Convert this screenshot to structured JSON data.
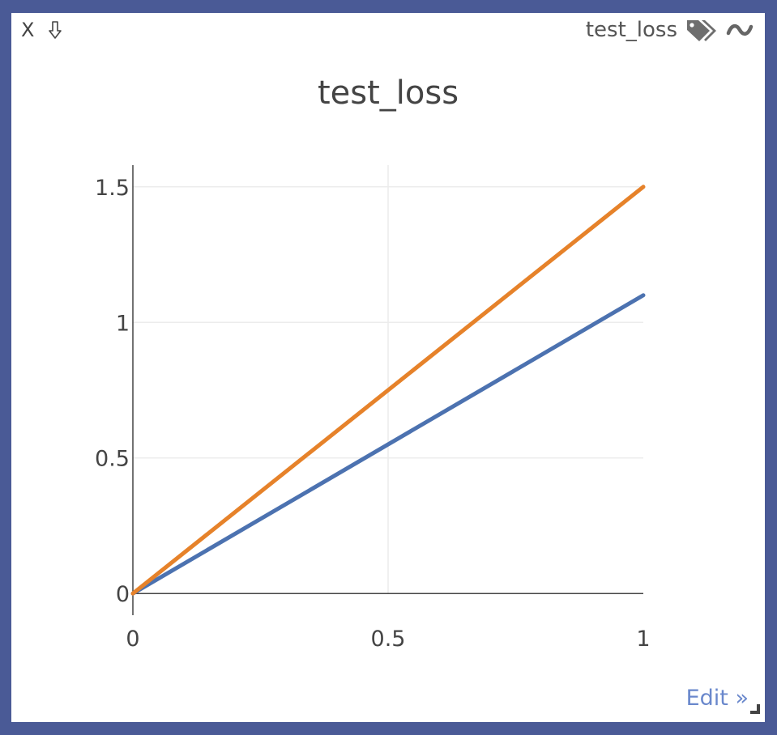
{
  "window": {
    "title": "test_loss",
    "close_label": "X",
    "edit_label": "Edit »"
  },
  "icons": {
    "close": "close-icon",
    "download": "download-arrow-icon",
    "tags": "tags-icon",
    "smoothing": "tilde-icon",
    "resize": "resize-corner-icon"
  },
  "colors": {
    "border": "#4a5a96",
    "series_1": "#4c72b0",
    "series_2": "#e6822a",
    "grid": "#ececec",
    "edit_link": "#6a88cc"
  },
  "chart_data": {
    "type": "line",
    "title": "test_loss",
    "xlim": [
      0,
      1
    ],
    "ylim": [
      -0.08,
      1.58
    ],
    "x_ticks": [
      0,
      0.5,
      1
    ],
    "x_tick_labels": [
      "0",
      "0.5",
      "1"
    ],
    "y_ticks": [
      0,
      0.5,
      1,
      1.5
    ],
    "y_tick_labels": [
      "0",
      "0.5",
      "1",
      "1.5"
    ],
    "grid": true,
    "series": [
      {
        "color": "#4c72b0",
        "x": [
          0,
          1
        ],
        "y": [
          0,
          1.1
        ]
      },
      {
        "color": "#e6822a",
        "x": [
          0,
          1
        ],
        "y": [
          0,
          1.5
        ]
      }
    ]
  }
}
